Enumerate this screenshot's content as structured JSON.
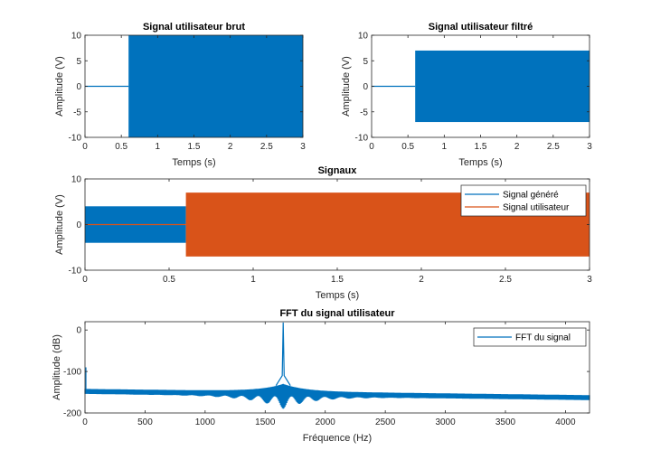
{
  "chart_data": [
    {
      "id": "raw",
      "type": "line",
      "title": "Signal utilisateur brut",
      "xlabel": "Temps (s)",
      "ylabel": "Amplitude (V)",
      "xlim": [
        0,
        3
      ],
      "ylim": [
        -10,
        10
      ],
      "xticks": [
        "0",
        "0.5",
        "1",
        "1.5",
        "2",
        "2.5",
        "3"
      ],
      "yticks": [
        "-10",
        "-5",
        "0",
        "5",
        "10"
      ],
      "series": [
        {
          "color": "#0072BD",
          "segments": [
            {
              "x0": 0,
              "x1": 0.6,
              "amplitude": 0
            },
            {
              "x0": 0.6,
              "x1": 3,
              "amplitude": 10
            }
          ]
        }
      ]
    },
    {
      "id": "filtered",
      "type": "line",
      "title": "Signal utilisateur filtré",
      "xlabel": "Temps (s)",
      "ylabel": "Amplitude (V)",
      "xlim": [
        0,
        3
      ],
      "ylim": [
        -10,
        10
      ],
      "xticks": [
        "0",
        "0.5",
        "1",
        "1.5",
        "2",
        "2.5",
        "3"
      ],
      "yticks": [
        "-10",
        "-5",
        "0",
        "5",
        "10"
      ],
      "series": [
        {
          "color": "#0072BD",
          "segments": [
            {
              "x0": 0,
              "x1": 0.6,
              "amplitude": 0
            },
            {
              "x0": 0.6,
              "x1": 3,
              "amplitude": 7
            }
          ]
        }
      ]
    },
    {
      "id": "signals",
      "type": "line",
      "title": "Signaux",
      "xlabel": "Temps (s)",
      "ylabel": "Amplitude (V)",
      "xlim": [
        0,
        3
      ],
      "ylim": [
        -10,
        10
      ],
      "xticks": [
        "0",
        "0.5",
        "1",
        "1.5",
        "2",
        "2.5",
        "3"
      ],
      "yticks": [
        "-10",
        "0",
        "10"
      ],
      "legend_position": "top-right",
      "series": [
        {
          "name": "Signal généré",
          "color": "#0072BD",
          "segments": [
            {
              "x0": 0,
              "x1": 0.6,
              "amplitude": 4
            }
          ]
        },
        {
          "name": "Signal utilisateur",
          "color": "#D95319",
          "segments": [
            {
              "x0": 0,
              "x1": 0.6,
              "amplitude": 0
            },
            {
              "x0": 0.6,
              "x1": 3,
              "amplitude": 7
            }
          ]
        }
      ]
    },
    {
      "id": "fft",
      "type": "line",
      "title": "FFT du signal utilisateur",
      "xlabel": "Fréquence (Hz)",
      "ylabel": "Amplitude (dB)",
      "xlim": [
        0,
        4200
      ],
      "ylim": [
        -200,
        20
      ],
      "xticks": [
        "0",
        "500",
        "1000",
        "1500",
        "2000",
        "2500",
        "3000",
        "3500",
        "4000"
      ],
      "yticks": [
        "-200",
        "-100",
        "0"
      ],
      "legend_position": "top-right",
      "series": [
        {
          "name": "FFT du signal",
          "color": "#0072BD",
          "peak_frequency": 1650,
          "peak_db": 18,
          "floor_start_db": -148,
          "floor_end_db": -163
        }
      ]
    }
  ]
}
